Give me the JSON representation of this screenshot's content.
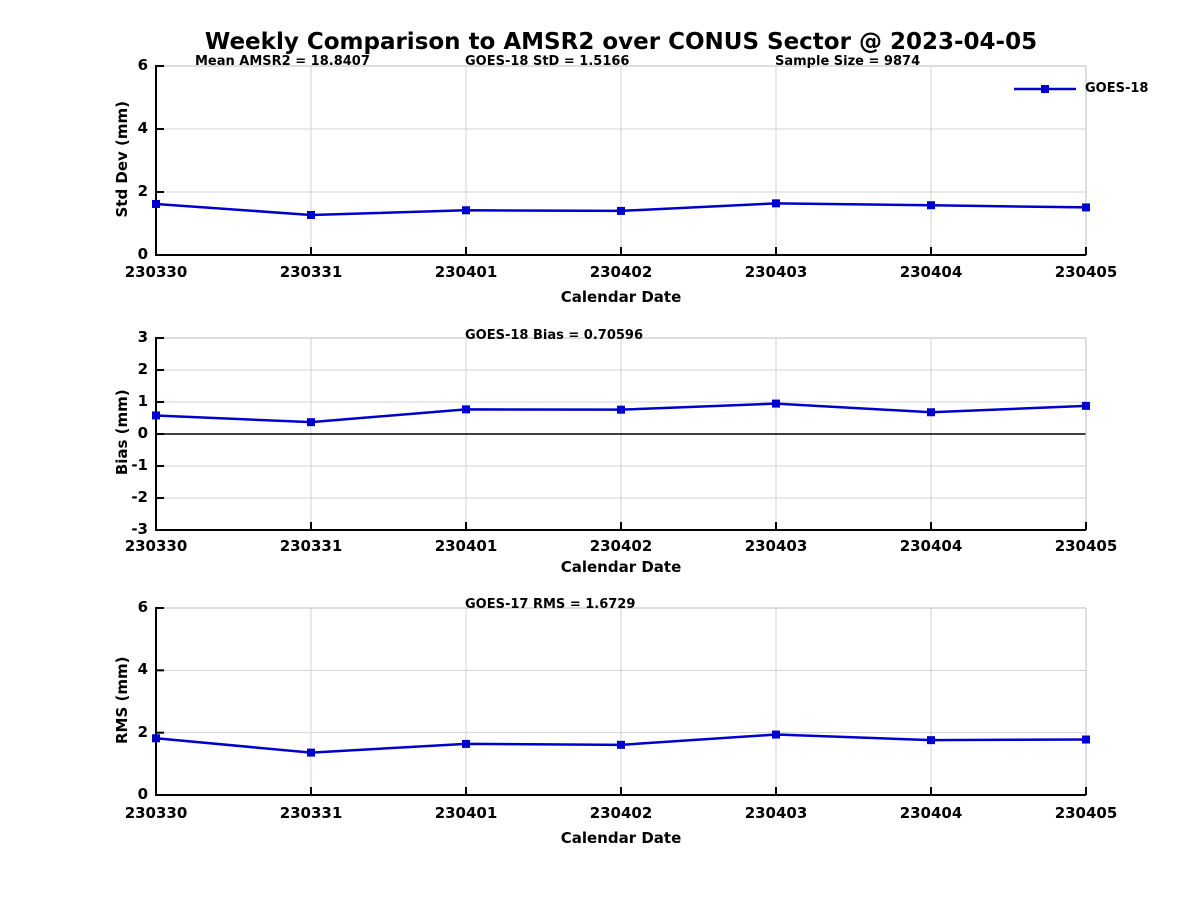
{
  "title": "Weekly Comparison to AMSR2 over CONUS Sector @ 2023-04-05",
  "legend": {
    "label": "GOES-18",
    "position": "top-right-outside"
  },
  "colors": {
    "line": "#0000cd",
    "marker": "#0000cd",
    "grid": "#d3d3d3",
    "spine_light": "#bdbdbd",
    "axis": "#000000",
    "zero_line": "#000000",
    "text": "#000000"
  },
  "chart_data": [
    {
      "type": "line",
      "panel": "std-dev",
      "annotations": [
        "Mean AMSR2 = 18.8407",
        "GOES-18 StD = 1.5166",
        "Sample Size = 9874"
      ],
      "categories": [
        "230330",
        "230331",
        "230401",
        "230402",
        "230403",
        "230404",
        "230405"
      ],
      "series": [
        {
          "name": "GOES-18",
          "values": [
            1.62,
            1.27,
            1.42,
            1.4,
            1.64,
            1.58,
            1.51
          ]
        }
      ],
      "xlabel": "Calendar Date",
      "ylabel": "Std Dev (mm)",
      "ylim": [
        0,
        6
      ],
      "yticks": [
        0,
        2,
        4,
        6
      ],
      "grid": true,
      "zero_line": false,
      "marker": "square"
    },
    {
      "type": "line",
      "panel": "bias",
      "annotations": [
        "GOES-18 Bias  = 0.70596"
      ],
      "categories": [
        "230330",
        "230331",
        "230401",
        "230402",
        "230403",
        "230404",
        "230405"
      ],
      "series": [
        {
          "name": "GOES-18",
          "values": [
            0.58,
            0.37,
            0.77,
            0.76,
            0.95,
            0.68,
            0.88
          ]
        }
      ],
      "xlabel": "Calendar Date",
      "ylabel": "Bias (mm)",
      "ylim": [
        -3,
        3
      ],
      "yticks": [
        -3,
        -2,
        -1,
        0,
        1,
        2,
        3
      ],
      "grid": true,
      "zero_line": true,
      "marker": "square"
    },
    {
      "type": "line",
      "panel": "rms",
      "annotations": [
        "GOES-17 RMS = 1.6729"
      ],
      "categories": [
        "230330",
        "230331",
        "230401",
        "230402",
        "230403",
        "230404",
        "230405"
      ],
      "series": [
        {
          "name": "GOES-18",
          "values": [
            1.82,
            1.36,
            1.64,
            1.61,
            1.94,
            1.76,
            1.78
          ]
        }
      ],
      "xlabel": "Calendar Date",
      "ylabel": "RMS (mm)",
      "ylim": [
        0,
        6
      ],
      "yticks": [
        0,
        2,
        4,
        6
      ],
      "grid": true,
      "zero_line": false,
      "marker": "square"
    }
  ]
}
